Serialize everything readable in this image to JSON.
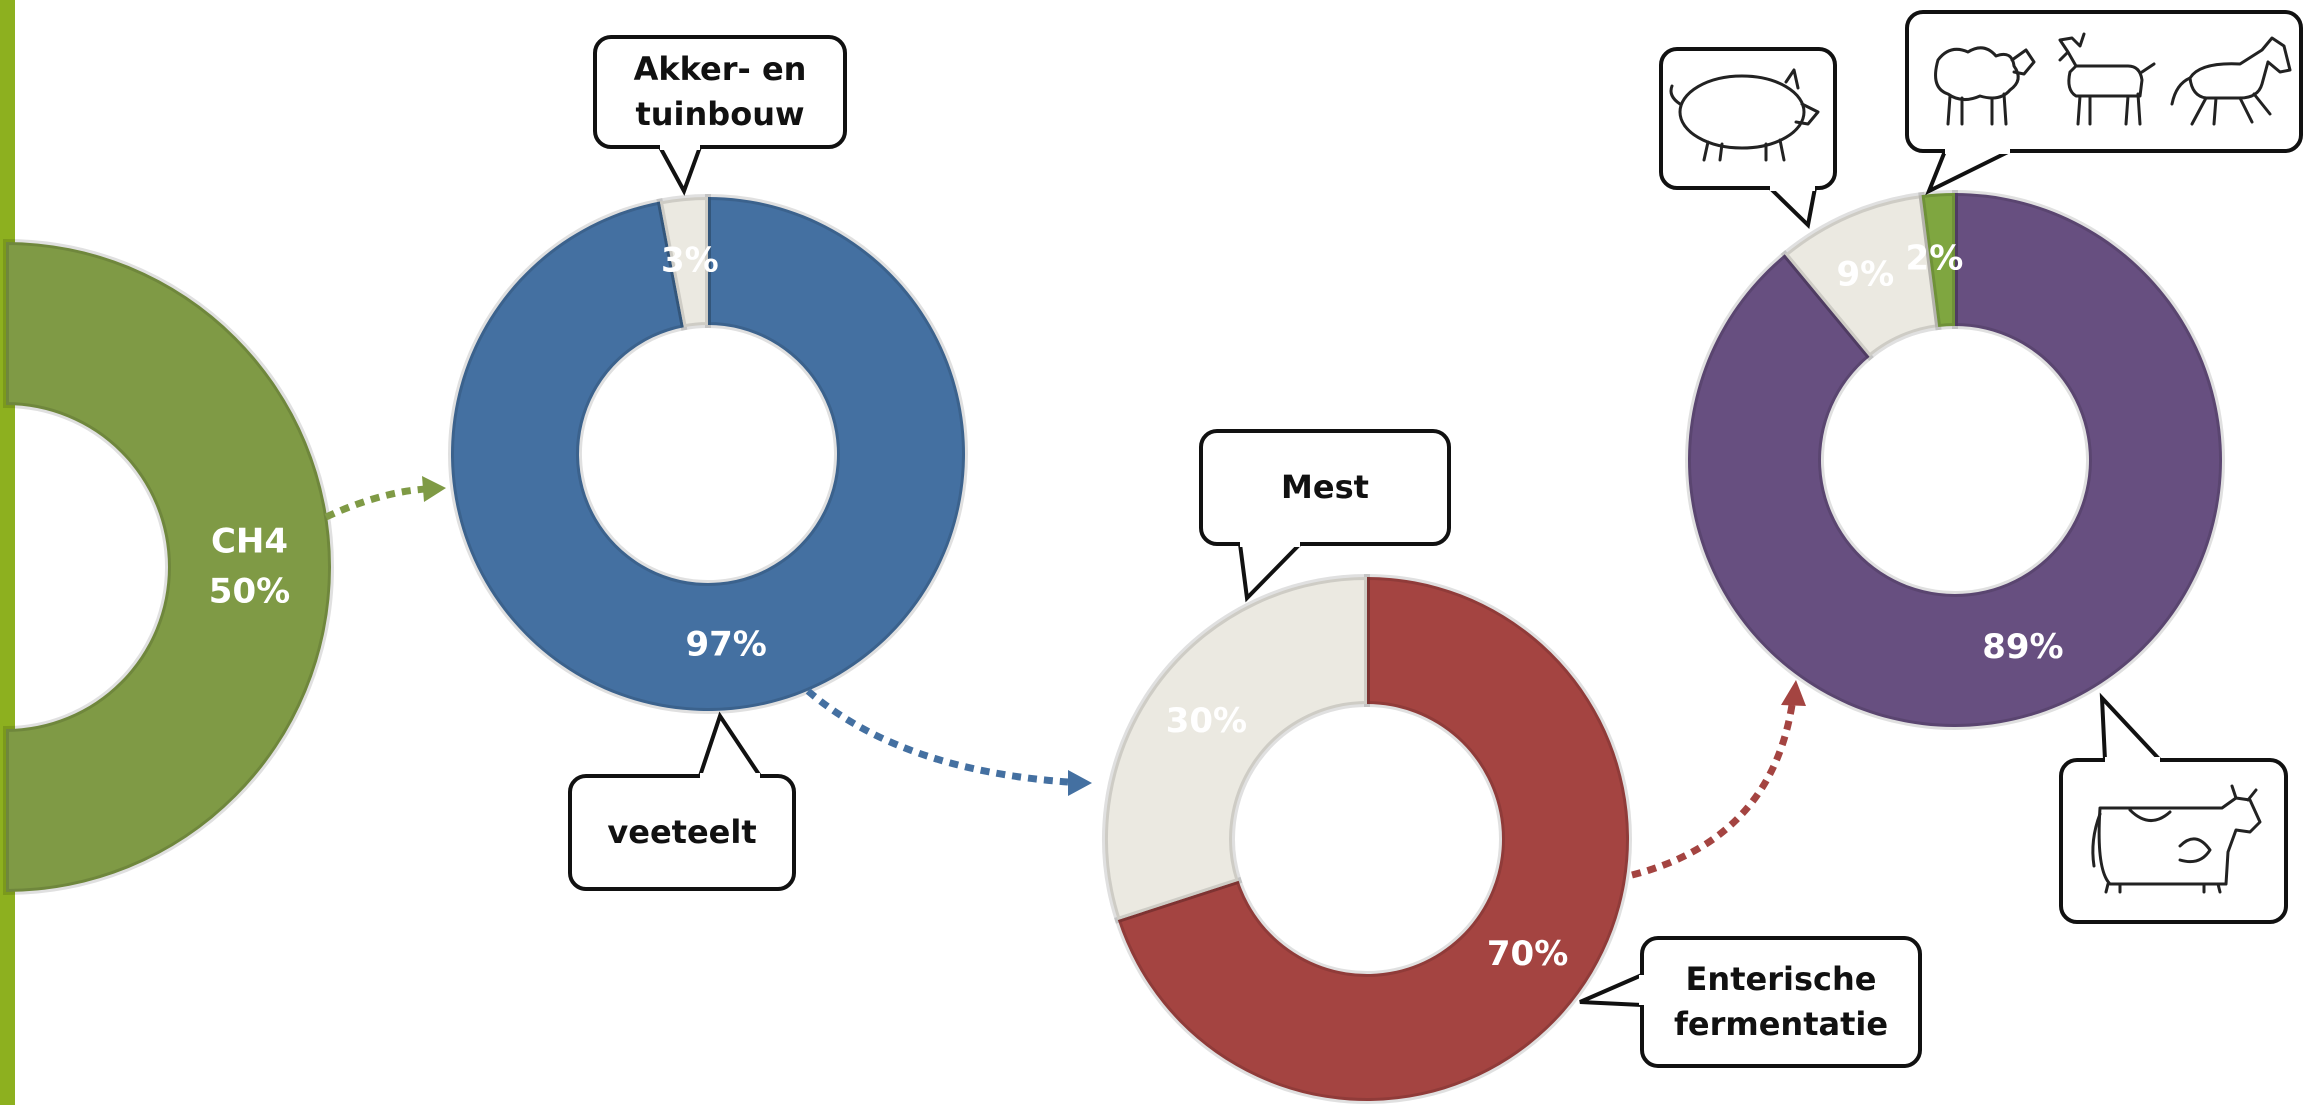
{
  "chart_data": [
    {
      "type": "pie",
      "categories": [
        "CH4"
      ],
      "values": [
        50
      ],
      "value_labels": [
        "50%"
      ],
      "colors": [
        "#7f9a45"
      ]
    },
    {
      "type": "pie",
      "categories": [
        "veeteelt",
        "Akker- en tuinbouw"
      ],
      "values": [
        97,
        3
      ],
      "value_labels": [
        "97%",
        "3%"
      ],
      "colors": [
        "#4470a1",
        "#ebe9e1"
      ]
    },
    {
      "type": "pie",
      "categories": [
        "Enterische fermentatie",
        "Mest"
      ],
      "values": [
        70,
        30
      ],
      "value_labels": [
        "70%",
        "30%"
      ],
      "colors": [
        "#a44441",
        "#ebe9e1"
      ]
    },
    {
      "type": "pie",
      "categories": [
        null,
        null,
        null
      ],
      "values": [
        89,
        9,
        2
      ],
      "value_labels": [
        "89%",
        "9%",
        "2%"
      ],
      "colors": [
        "#674f80",
        "#ebe9e1",
        "#7fa640"
      ]
    }
  ]
}
